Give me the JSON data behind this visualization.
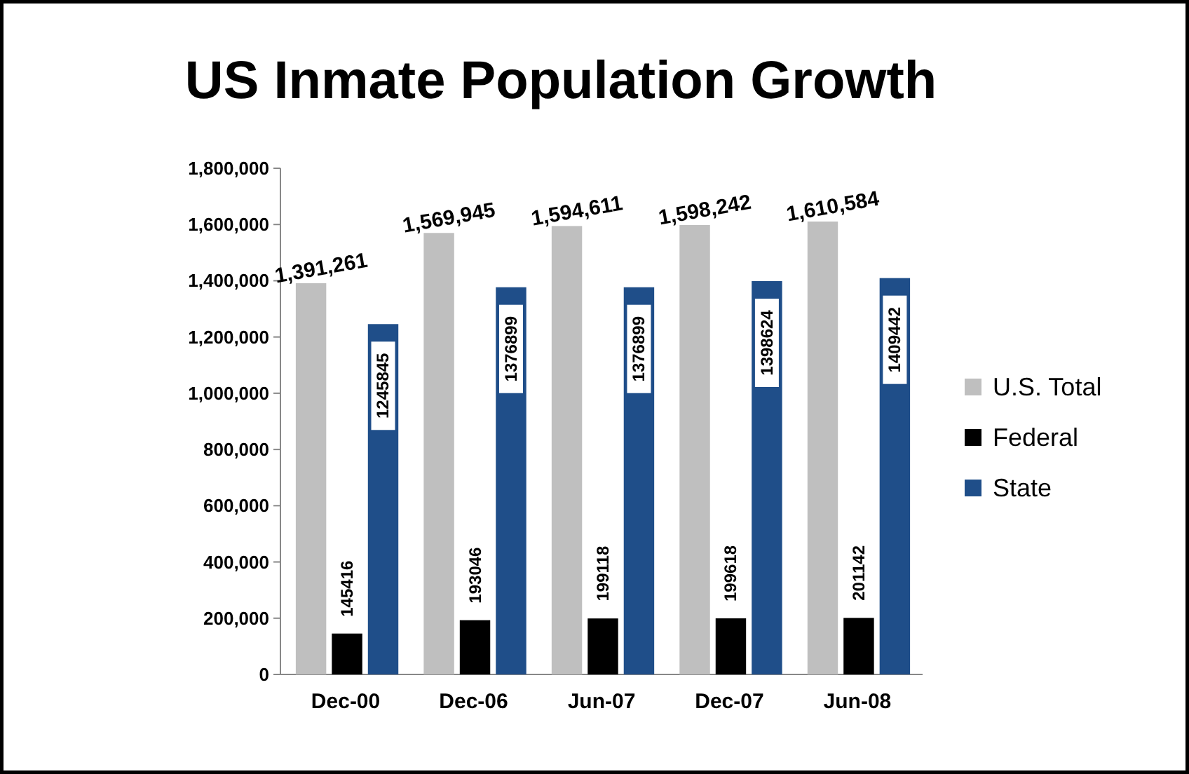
{
  "chart_data": {
    "type": "bar",
    "title": "US Inmate Population Growth",
    "categories": [
      "Dec-00",
      "Dec-06",
      "Jun-07",
      "Dec-07",
      "Jun-08"
    ],
    "series": [
      {
        "name": "U.S. Total",
        "color": "#bfbfbf",
        "values": [
          1391261,
          1569945,
          1594611,
          1598242,
          1610584
        ],
        "value_labels": [
          "1,391,261",
          "1,569,945",
          "1,594,611",
          "1,598,242",
          "1,610,584"
        ]
      },
      {
        "name": "Federal",
        "color": "#000000",
        "values": [
          145416,
          193046,
          199118,
          199618,
          201142
        ],
        "value_labels": [
          "145416",
          "193046",
          "199118",
          "199618",
          "201142"
        ]
      },
      {
        "name": "State",
        "color": "#1f4e89",
        "values": [
          1245845,
          1376899,
          1376899,
          1398624,
          1409442
        ],
        "value_labels": [
          "1245845",
          "1376899",
          "1376899",
          "1398624",
          "1409442"
        ]
      }
    ],
    "ylim": [
      0,
      1800000
    ],
    "yticks": [
      0,
      {
        "value": 200000,
        "label": "200,000"
      },
      {
        "value": 400000,
        "label": "400,000"
      },
      {
        "value": 600000,
        "label": "600,000"
      },
      {
        "value": 800000,
        "label": "800,000"
      },
      {
        "value": 1000000,
        "label": "1,000,000"
      },
      {
        "value": 1200000,
        "label": "1,200,000"
      },
      {
        "value": 1400000,
        "label": "1,400,000"
      },
      {
        "value": 1600000,
        "label": "1,600,000"
      },
      {
        "value": 1800000,
        "label": "1,800,000"
      }
    ],
    "grid": false,
    "legend": "right"
  }
}
